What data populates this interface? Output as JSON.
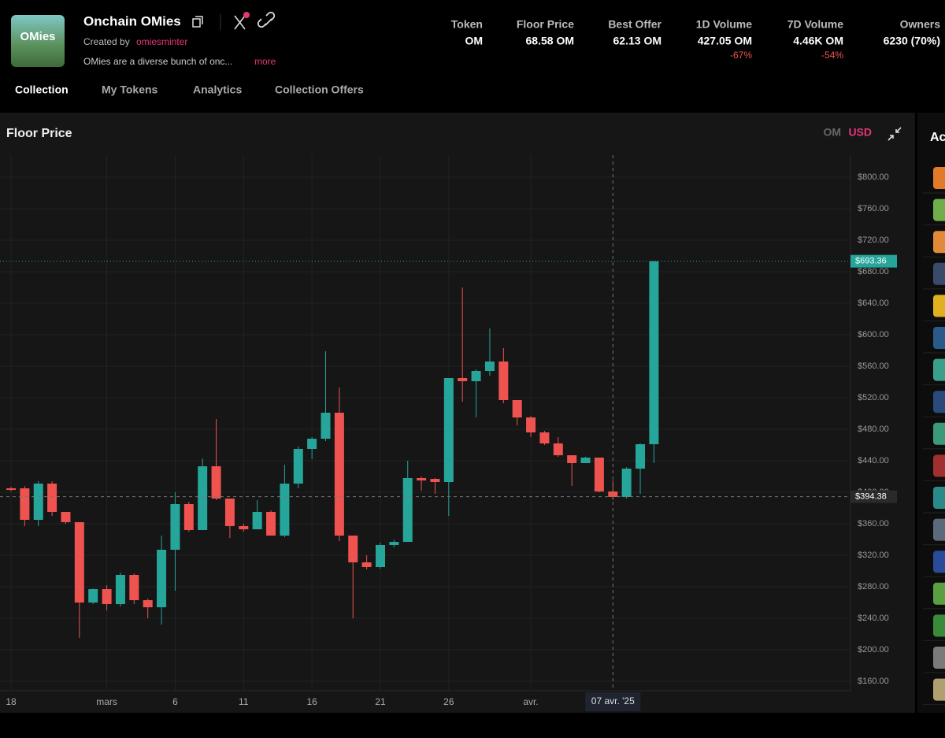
{
  "header": {
    "logo_text": "OMies",
    "title": "Onchain OMies",
    "created_by": "Created by",
    "creator": "omiesminter",
    "description": "OMies are a diverse bunch of onc...",
    "more": "more",
    "stats": [
      {
        "label": "Token",
        "value": "OM"
      },
      {
        "label": "Floor Price",
        "value": "68.58 OM"
      },
      {
        "label": "Best Offer",
        "value": "62.13 OM"
      },
      {
        "label": "1D Volume",
        "value": "427.05 OM",
        "change": "-67%"
      },
      {
        "label": "7D Volume",
        "value": "4.46K OM",
        "change": "-54%"
      },
      {
        "label": "Owners",
        "value": "6230 (70%)"
      }
    ]
  },
  "tabs": [
    "Collection",
    "My Tokens",
    "Analytics",
    "Collection Offers"
  ],
  "sidebar": {
    "title": "Ac"
  },
  "chart_data": {
    "type": "candlestick",
    "title": "Floor Price",
    "currency_options": [
      "OM",
      "USD"
    ],
    "categories": [
      "18",
      null,
      null,
      null,
      null,
      null,
      null,
      "mars",
      null,
      null,
      null,
      null,
      "6",
      null,
      null,
      null,
      null,
      "11",
      null,
      null,
      null,
      null,
      "16",
      null,
      null,
      null,
      null,
      "21",
      null,
      null,
      null,
      null,
      "26",
      null,
      null,
      null,
      null,
      null,
      "avr.",
      null,
      null,
      null,
      null,
      null,
      "07 avr. '25",
      null,
      null,
      null
    ],
    "open": [
      405,
      405,
      365,
      411,
      375,
      362,
      260,
      277,
      258,
      295,
      263,
      254,
      327,
      385,
      352,
      433,
      392,
      357,
      353,
      375,
      345,
      411,
      455,
      468,
      501,
      345,
      311,
      305,
      333,
      337,
      418,
      417,
      413,
      545,
      541,
      554,
      566,
      517,
      495,
      476,
      462,
      447,
      437,
      444,
      401,
      394,
      430,
      461
    ],
    "high": [
      407,
      408,
      414,
      414,
      375,
      362,
      278,
      282,
      298,
      297,
      265,
      345,
      400,
      388,
      443,
      493,
      392,
      360,
      390,
      377,
      435,
      458,
      470,
      579,
      533,
      345,
      320,
      336,
      340,
      440,
      420,
      418,
      545,
      660,
      556,
      608,
      583,
      517,
      497,
      478,
      470,
      447,
      445,
      444,
      415,
      432,
      462,
      693.36
    ],
    "low": [
      401,
      357,
      357,
      370,
      360,
      215,
      258,
      250,
      255,
      258,
      240,
      232,
      275,
      350,
      352,
      390,
      342,
      350,
      353,
      345,
      343,
      405,
      442,
      465,
      338,
      240,
      302,
      303,
      330,
      337,
      402,
      398,
      370,
      515,
      495,
      548,
      513,
      485,
      470,
      460,
      445,
      408,
      437,
      400,
      390,
      392,
      398,
      437
    ],
    "close": [
      403,
      365,
      411,
      375,
      362,
      260,
      277,
      258,
      295,
      263,
      254,
      327,
      385,
      352,
      433,
      392,
      357,
      353,
      375,
      345,
      411,
      455,
      468,
      501,
      345,
      311,
      305,
      333,
      337,
      418,
      415,
      413,
      545,
      541,
      554,
      566,
      517,
      495,
      476,
      462,
      447,
      437,
      444,
      401,
      394,
      430,
      461,
      693.36
    ],
    "up_color": "#26a69a",
    "down_color": "#ef5350",
    "ylim": [
      148,
      828
    ],
    "yticks": [
      {
        "value": 160,
        "label": "$160.00"
      },
      {
        "value": 200,
        "label": "$200.00"
      },
      {
        "value": 240,
        "label": "$240.00"
      },
      {
        "value": 280,
        "label": "$280.00"
      },
      {
        "value": 320,
        "label": "$320.00"
      },
      {
        "value": 360,
        "label": "$360.00"
      },
      {
        "value": 400,
        "label": "$400.00"
      },
      {
        "value": 440,
        "label": "$440.00"
      },
      {
        "value": 480,
        "label": "$480.00"
      },
      {
        "value": 520,
        "label": "$520.00"
      },
      {
        "value": 560,
        "label": "$560.00"
      },
      {
        "value": 600,
        "label": "$600.00"
      },
      {
        "value": 640,
        "label": "$640.00"
      },
      {
        "value": 680,
        "label": "$680.00"
      },
      {
        "value": 720,
        "label": "$720.00"
      },
      {
        "value": 760,
        "label": "$760.00"
      },
      {
        "value": 800,
        "label": "$800.00"
      }
    ],
    "last_price": {
      "value": 693.36,
      "label": "$693.36"
    },
    "crosshair": {
      "value": 394.38,
      "label": "$394.38"
    },
    "grid": true
  }
}
